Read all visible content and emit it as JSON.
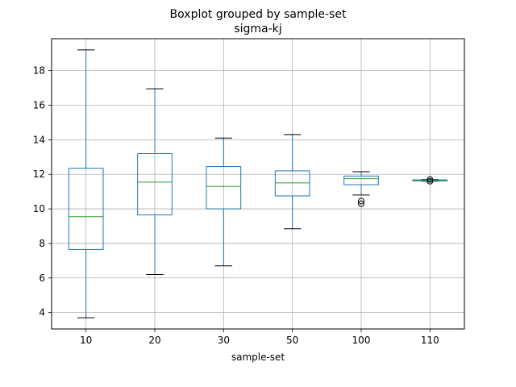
{
  "chart_data": {
    "type": "boxplot",
    "title": "Boxplot grouped by sample-set",
    "subtitle": "sigma-kj",
    "xlabel": "sample-set",
    "ylabel": "",
    "ylim": [
      3.05,
      19.85
    ],
    "yticks": [
      4,
      6,
      8,
      10,
      12,
      14,
      16,
      18
    ],
    "grid": true,
    "categories": [
      "10",
      "20",
      "30",
      "50",
      "100",
      "110"
    ],
    "boxes": [
      {
        "category": "10",
        "whislo": 3.7,
        "q1": 7.65,
        "med": 9.55,
        "q3": 12.35,
        "whishi": 19.2,
        "fliers": []
      },
      {
        "category": "20",
        "whislo": 6.2,
        "q1": 9.65,
        "med": 11.55,
        "q3": 13.2,
        "whishi": 16.95,
        "fliers": []
      },
      {
        "category": "30",
        "whislo": 6.7,
        "q1": 10.0,
        "med": 11.3,
        "q3": 12.45,
        "whishi": 14.1,
        "fliers": []
      },
      {
        "category": "50",
        "whislo": 8.85,
        "q1": 10.75,
        "med": 11.5,
        "q3": 12.2,
        "whishi": 14.3,
        "fliers": []
      },
      {
        "category": "100",
        "whislo": 10.8,
        "q1": 11.4,
        "med": 11.75,
        "q3": 11.9,
        "whishi": 12.15,
        "fliers": [
          10.45,
          10.3
        ]
      },
      {
        "category": "110",
        "whislo": 11.6,
        "q1": 11.62,
        "med": 11.65,
        "q3": 11.68,
        "whishi": 11.7,
        "fliers": [
          11.6,
          11.7
        ]
      }
    ],
    "colors": {
      "box": "#1f77b4",
      "median": "#2ca02c",
      "whisker": "#000000",
      "grid": "#b0b0b0",
      "flier": "#000000"
    }
  }
}
